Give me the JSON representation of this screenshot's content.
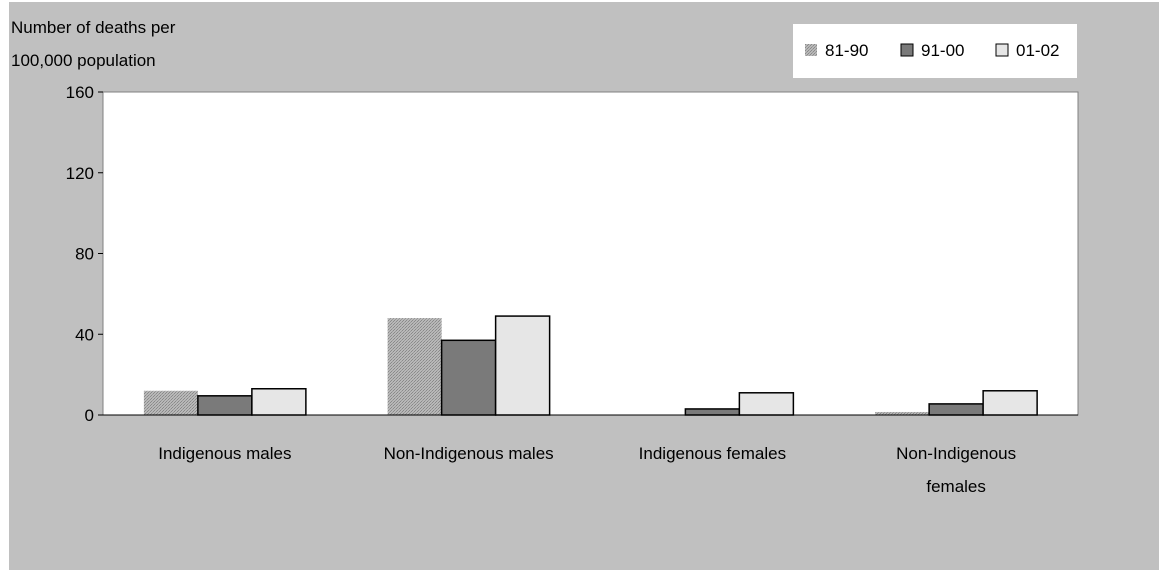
{
  "colors": {
    "background": "#c0c0c0",
    "plot_area": "#ffffff",
    "series_81_90": "#a6a6a6",
    "series_91_00": "#7a7a7a",
    "series_01_02": "#e6e6e6"
  },
  "chart_data": {
    "type": "bar",
    "title": "",
    "ylabel_lines": [
      "Number of deaths per",
      "100,000 population"
    ],
    "xlabel": "",
    "ylim": [
      0,
      160
    ],
    "yticks": [
      0,
      40,
      80,
      120,
      160
    ],
    "ytick_labels": [
      "0",
      "40",
      "80",
      "120",
      "160"
    ],
    "grid": false,
    "legend_position": "top-right",
    "categories": [
      "Indigenous males",
      "Non-Indigenous males",
      "Indigenous females",
      "Non-Indigenous females"
    ],
    "category_label_lines": [
      [
        "Indigenous males"
      ],
      [
        "Non-Indigenous males"
      ],
      [
        "Indigenous females"
      ],
      [
        "Non-Indigenous",
        "females"
      ]
    ],
    "series": [
      {
        "name": "81-90",
        "values": [
          12,
          48,
          0,
          1.5
        ]
      },
      {
        "name": "91-00",
        "values": [
          9.5,
          37,
          3,
          5.5
        ]
      },
      {
        "name": "01-02",
        "values": [
          13,
          49,
          11,
          12
        ]
      }
    ]
  }
}
